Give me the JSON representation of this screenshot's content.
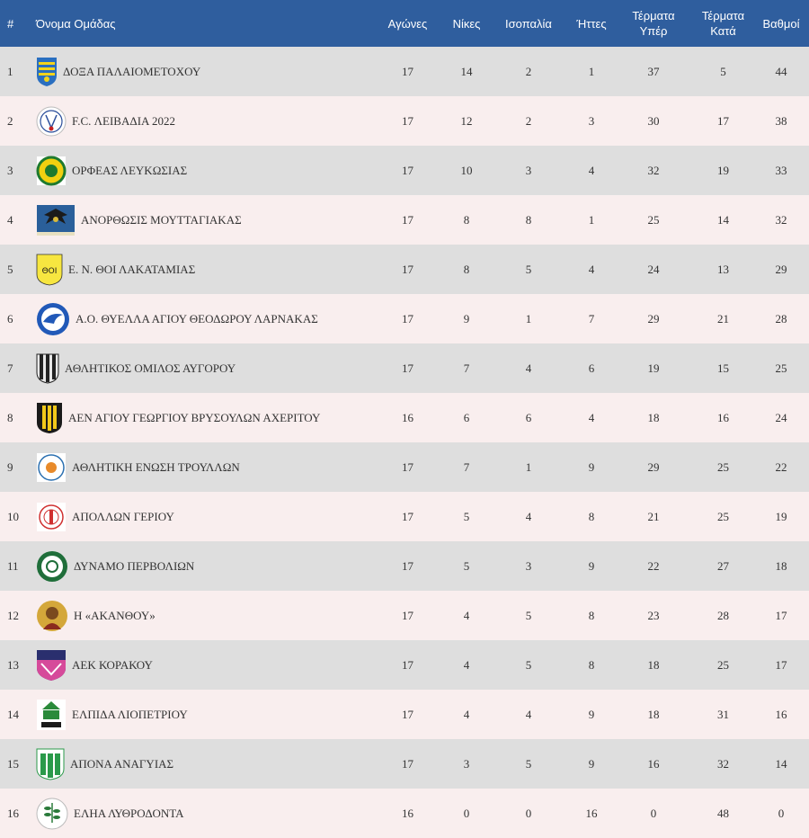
{
  "header": {
    "rank": "#",
    "team": "Όνομα Ομάδας",
    "played": "Αγώνες",
    "wins": "Νίκες",
    "draws": "Ισοπαλία",
    "losses": "Ήττες",
    "goals_for": [
      "Τέρματα",
      "Υπέρ"
    ],
    "goals_against": [
      "Τέρματα",
      "Κατά"
    ],
    "points": "Βαθμοί"
  },
  "rows": [
    {
      "rank": "1",
      "team": "ΔΟΞΑ ΠΑΛΑΙΟΜΕΤΟΧΟΥ",
      "logo": "shield-blue-yellow-icon",
      "played": "17",
      "wins": "14",
      "draws": "2",
      "losses": "1",
      "gf": "37",
      "ga": "5",
      "pts": "44"
    },
    {
      "rank": "2",
      "team": "F.C. ΛΕΙΒΑΔΙΑ 2022",
      "logo": "crest-white-round-icon",
      "played": "17",
      "wins": "12",
      "draws": "2",
      "losses": "3",
      "gf": "30",
      "ga": "17",
      "pts": "38"
    },
    {
      "rank": "3",
      "team": "ΟΡΦΕΑΣ ΛΕΥΚΩΣΙΑΣ",
      "logo": "crest-green-yellow-icon",
      "played": "17",
      "wins": "10",
      "draws": "3",
      "losses": "4",
      "gf": "32",
      "ga": "19",
      "pts": "33"
    },
    {
      "rank": "4",
      "team": "ΑΝΟΡΘΩΣΙΣ ΜΟΥΤΤΑΓΙΑΚΑΣ",
      "logo": "eagle-crest-icon",
      "played": "17",
      "wins": "8",
      "draws": "8",
      "losses": "1",
      "gf": "25",
      "ga": "14",
      "pts": "32"
    },
    {
      "rank": "5",
      "team": "Ε. Ν. ΘΟΙ ΛΑΚΑΤΑΜΙΑΣ",
      "logo": "shield-yellow-icon",
      "played": "17",
      "wins": "8",
      "draws": "5",
      "losses": "4",
      "gf": "24",
      "ga": "13",
      "pts": "29"
    },
    {
      "rank": "6",
      "team": "Α.Ο. ΘΥΕΛΛΑ ΑΓΙΟΥ ΘΕΟΔΩΡΟΥ ΛΑΡΝΑΚΑΣ",
      "logo": "crest-blue-bird-icon",
      "played": "17",
      "wins": "9",
      "draws": "1",
      "losses": "7",
      "gf": "29",
      "ga": "21",
      "pts": "28"
    },
    {
      "rank": "7",
      "team": "ΑΘΛΗΤΙΚΟΣ ΟΜΙΛΟΣ ΑΥΓΟΡΟΥ",
      "logo": "shield-black-white-icon",
      "played": "17",
      "wins": "7",
      "draws": "4",
      "losses": "6",
      "gf": "19",
      "ga": "15",
      "pts": "25"
    },
    {
      "rank": "8",
      "team": "ΑΕΝ ΑΓΙΟΥ ΓΕΩΡΓΙΟΥ ΒΡΥΣΟΥΛΩΝ ΑΧΕΡΙΤΟΥ",
      "logo": "shield-black-yellow-icon",
      "played": "16",
      "wins": "6",
      "draws": "6",
      "losses": "4",
      "gf": "18",
      "ga": "16",
      "pts": "24"
    },
    {
      "rank": "9",
      "team": "ΑΘΛΗΤΙΚΗ ΕΝΩΣΗ ΤΡΟΥΛΛΩΝ",
      "logo": "crest-white-orange-icon",
      "played": "17",
      "wins": "7",
      "draws": "1",
      "losses": "9",
      "gf": "29",
      "ga": "25",
      "pts": "22"
    },
    {
      "rank": "10",
      "team": "ΑΠΟΛΛΩΝ ΓΕΡΙΟΥ",
      "logo": "crest-white-red-icon",
      "played": "17",
      "wins": "5",
      "draws": "4",
      "losses": "8",
      "gf": "21",
      "ga": "25",
      "pts": "19"
    },
    {
      "rank": "11",
      "team": "ΔΥΝΑΜΟ ΠΕΡΒΟΛΙΩΝ",
      "logo": "crest-dark-green-icon",
      "played": "17",
      "wins": "5",
      "draws": "3",
      "losses": "9",
      "gf": "22",
      "ga": "27",
      "pts": "18"
    },
    {
      "rank": "12",
      "team": "Η «ΑΚΑΝΘΟΥ»",
      "logo": "icon-portrait-icon",
      "played": "17",
      "wins": "4",
      "draws": "5",
      "losses": "8",
      "gf": "23",
      "ga": "28",
      "pts": "17"
    },
    {
      "rank": "13",
      "team": "ΑΕΚ ΚΟΡΑΚΟΥ",
      "logo": "shield-navy-pink-icon",
      "played": "17",
      "wins": "4",
      "draws": "5",
      "losses": "8",
      "gf": "18",
      "ga": "25",
      "pts": "17"
    },
    {
      "rank": "14",
      "team": "ΕΛΠΙΔΑ ΛΙΟΠΕΤΡΙΟΥ",
      "logo": "crest-green-white-icon",
      "played": "17",
      "wins": "4",
      "draws": "4",
      "losses": "9",
      "gf": "18",
      "ga": "31",
      "pts": "16"
    },
    {
      "rank": "15",
      "team": "ΑΠΟΝΑ ΑΝΑΓΥΙΑΣ",
      "logo": "shield-green-stripes-icon",
      "played": "17",
      "wins": "3",
      "draws": "5",
      "losses": "9",
      "gf": "16",
      "ga": "32",
      "pts": "14"
    },
    {
      "rank": "16",
      "team": "ΕΛΗΑ ΛΥΘΡΟΔΟΝΤΑ",
      "logo": "crest-olive-branch-icon",
      "played": "16",
      "wins": "0",
      "draws": "0",
      "losses": "16",
      "gf": "0",
      "ga": "48",
      "pts": "0"
    }
  ]
}
